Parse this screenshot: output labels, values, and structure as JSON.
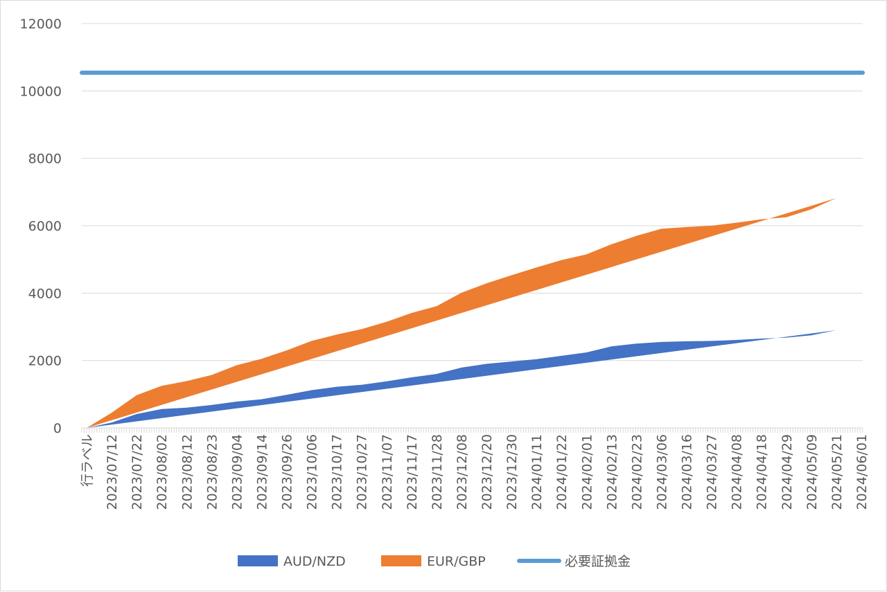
{
  "chart_data": {
    "type": "area",
    "stacked": true,
    "ylim": [
      0,
      12000
    ],
    "yticks": [
      0,
      2000,
      4000,
      6000,
      8000,
      10000,
      12000
    ],
    "grid": true,
    "legend_position": "bottom",
    "first_category_label": "行ラベル",
    "x_ticks": [
      "2023/07/12",
      "2023/07/22",
      "2023/08/02",
      "2023/08/12",
      "2023/08/23",
      "2023/09/04",
      "2023/09/14",
      "2023/09/26",
      "2023/10/06",
      "2023/10/17",
      "2023/10/27",
      "2023/11/07",
      "2023/11/17",
      "2023/11/28",
      "2023/12/08",
      "2023/12/20",
      "2023/12/30",
      "2024/01/11",
      "2024/01/22",
      "2024/02/01",
      "2024/02/13",
      "2024/02/23",
      "2024/03/06",
      "2024/03/16",
      "2024/03/27",
      "2024/04/08",
      "2024/04/18",
      "2024/04/29",
      "2024/05/09",
      "2024/05/21",
      "2024/06/01"
    ],
    "series": [
      {
        "name": "AUD/NZD",
        "kind": "area",
        "color": "#4472c4",
        "values": [
          0,
          160,
          410,
          560,
          600,
          680,
          780,
          850,
          980,
          1120,
          1220,
          1280,
          1380,
          1500,
          1600,
          1790,
          1900,
          1970,
          2040,
          2140,
          2240,
          2420,
          2500,
          2550,
          2570,
          2580,
          2610,
          2650,
          2680,
          2750,
          2900
        ]
      },
      {
        "name": "EUR/GBP",
        "kind": "area",
        "color": "#ed7d31",
        "values": [
          0,
          290,
          560,
          690,
          790,
          890,
          1080,
          1200,
          1320,
          1460,
          1550,
          1650,
          1770,
          1910,
          2010,
          2220,
          2390,
          2560,
          2720,
          2840,
          2910,
          3030,
          3200,
          3360,
          3390,
          3420,
          3480,
          3540,
          3570,
          3740,
          3920
        ]
      },
      {
        "name": "必要証拠金",
        "kind": "line",
        "color": "#5b9bd5",
        "value": 10540
      }
    ]
  }
}
